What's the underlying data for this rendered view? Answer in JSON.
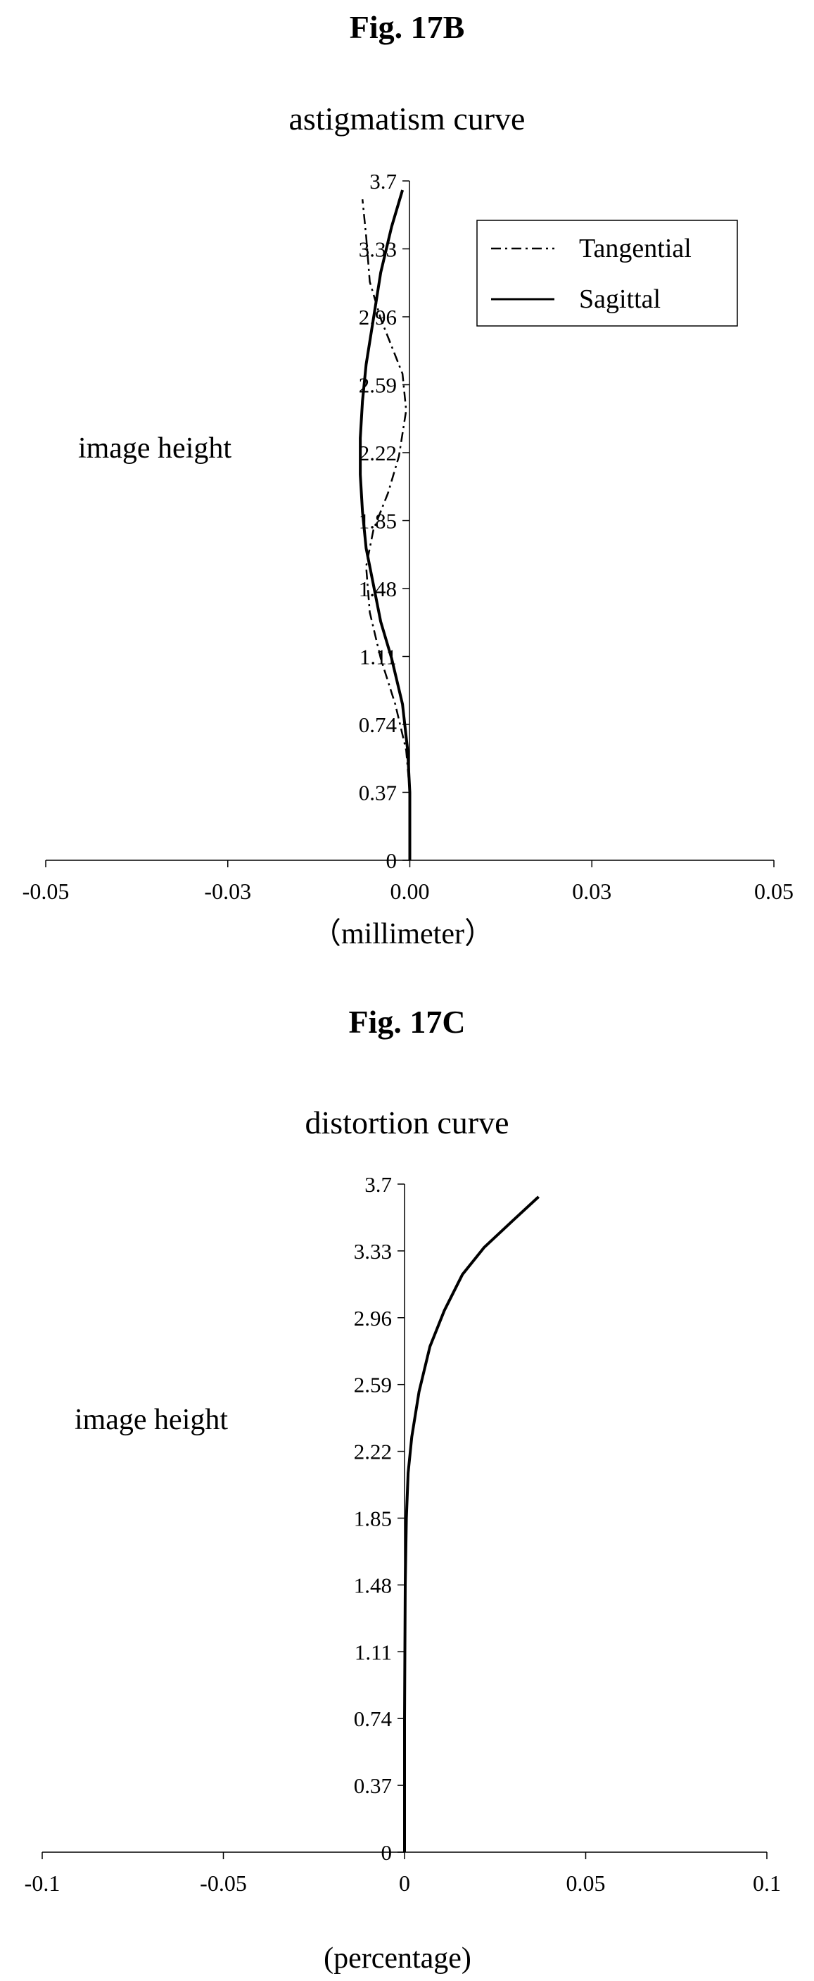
{
  "figures": [
    {
      "caption": "Fig. 17B"
    },
    {
      "caption": "Fig. 17C"
    }
  ],
  "chart_data": [
    {
      "type": "line",
      "title": "astigmatism curve",
      "xlabel": "（millimeter）",
      "ylabel": "image height",
      "xlim": [
        -0.05,
        0.05
      ],
      "ylim": [
        0,
        3.7
      ],
      "x_ticks": [
        "-0.05",
        "-0.03",
        "0.00",
        "0.03",
        "0.05"
      ],
      "y_ticks": [
        "0",
        "0.37",
        "0.74",
        "1.11",
        "1.48",
        "1.85",
        "2.22",
        "2.59",
        "2.96",
        "3.33",
        "3.7"
      ],
      "grid": false,
      "legend": "top-right",
      "series": [
        {
          "name": "Tangential",
          "style": "dash-dot",
          "points": [
            [
              0,
              0
            ],
            [
              0,
              0.37
            ],
            [
              -0.0005,
              0.6
            ],
            [
              -0.002,
              0.85
            ],
            [
              -0.004,
              1.1
            ],
            [
              -0.0055,
              1.35
            ],
            [
              -0.006,
              1.6
            ],
            [
              -0.005,
              1.8
            ],
            [
              -0.003,
              2.0
            ],
            [
              -0.0015,
              2.2
            ],
            [
              -0.0005,
              2.45
            ],
            [
              -0.001,
              2.65
            ],
            [
              -0.0025,
              2.8
            ],
            [
              -0.004,
              2.95
            ],
            [
              -0.0055,
              3.15
            ],
            [
              -0.006,
              3.4
            ],
            [
              -0.0065,
              3.6
            ]
          ]
        },
        {
          "name": "Sagittal",
          "style": "solid",
          "points": [
            [
              0,
              0
            ],
            [
              0,
              0.37
            ],
            [
              -0.0003,
              0.6
            ],
            [
              -0.001,
              0.85
            ],
            [
              -0.0025,
              1.1
            ],
            [
              -0.004,
              1.3
            ],
            [
              -0.005,
              1.5
            ],
            [
              -0.006,
              1.7
            ],
            [
              -0.0065,
              1.9
            ],
            [
              -0.0068,
              2.1
            ],
            [
              -0.0068,
              2.3
            ],
            [
              -0.0065,
              2.5
            ],
            [
              -0.006,
              2.7
            ],
            [
              -0.005,
              2.95
            ],
            [
              -0.004,
              3.2
            ],
            [
              -0.0025,
              3.45
            ],
            [
              -0.001,
              3.65
            ]
          ]
        }
      ]
    },
    {
      "type": "line",
      "title": "distortion curve",
      "xlabel": "(percentage)",
      "ylabel": "image height",
      "xlim": [
        -0.1,
        0.1
      ],
      "ylim": [
        0,
        3.7
      ],
      "x_ticks": [
        "-0.1",
        "-0.05",
        "0",
        "0.05",
        "0.1"
      ],
      "y_ticks": [
        "0",
        "0.37",
        "0.74",
        "1.11",
        "1.48",
        "1.85",
        "2.22",
        "2.59",
        "2.96",
        "3.33",
        "3.7"
      ],
      "grid": false,
      "legend": "none",
      "series": [
        {
          "name": "",
          "style": "solid",
          "points": [
            [
              0,
              0
            ],
            [
              0,
              0.74
            ],
            [
              0.0002,
              1.48
            ],
            [
              0.0005,
              1.85
            ],
            [
              0.001,
              2.1
            ],
            [
              0.002,
              2.3
            ],
            [
              0.004,
              2.55
            ],
            [
              0.007,
              2.8
            ],
            [
              0.011,
              3.0
            ],
            [
              0.016,
              3.2
            ],
            [
              0.022,
              3.35
            ],
            [
              0.03,
              3.5
            ],
            [
              0.037,
              3.63
            ]
          ]
        }
      ]
    }
  ]
}
